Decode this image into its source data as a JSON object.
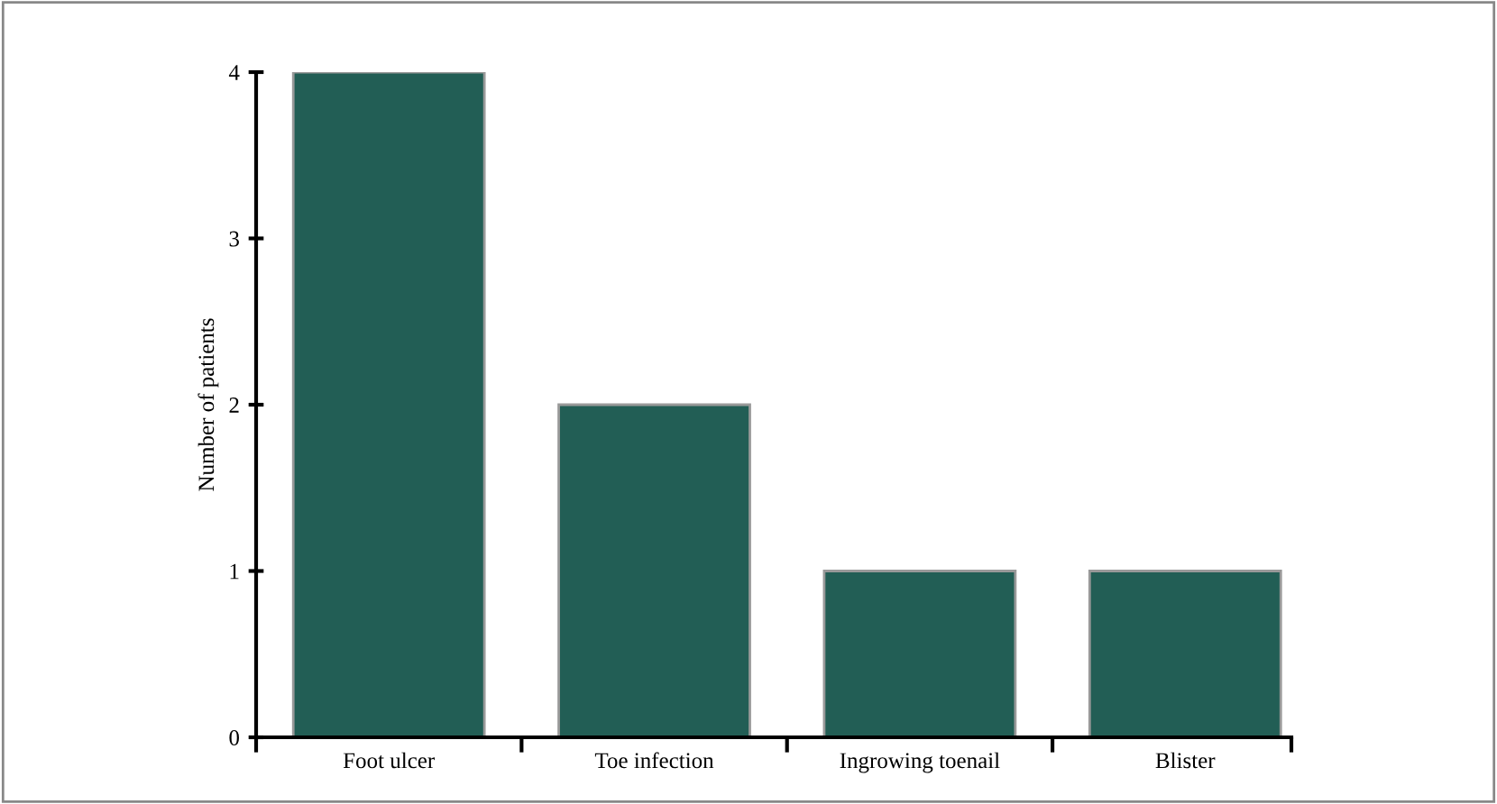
{
  "chart_data": {
    "type": "bar",
    "ylabel": "Number of patients",
    "categories": [
      "Foot ulcer",
      "Toe infection",
      "Ingrowing toenail",
      "Blister"
    ],
    "values": [
      4,
      2,
      1,
      1
    ],
    "color": "#225e55",
    "ylim": [
      0,
      4
    ],
    "yticks": [
      0,
      1,
      2,
      3,
      4
    ],
    "grid": false,
    "legend": false
  }
}
